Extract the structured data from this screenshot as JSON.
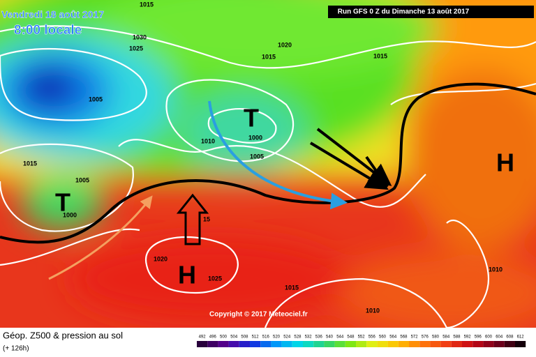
{
  "header": {
    "date": "Vendredi 18 août 2017",
    "time": "8:00 locale",
    "run": "Run GFS 0 Z du Dimanche 13 août 2017"
  },
  "pressure_labels": [
    "1015",
    "1030",
    "1025",
    "1020",
    "1015",
    "1015",
    "1005",
    "1000",
    "1005",
    "1010",
    "1015",
    "1005",
    "1000",
    "15",
    "1020",
    "1025",
    "1015",
    "1010",
    "1010"
  ],
  "systems": [
    "T",
    "T",
    "H",
    "H"
  ],
  "copyright": "Copyright © 2017 Meteociel.fr",
  "legend": {
    "title": "Géop. Z500 & pression au sol",
    "lead": "(+ 126h)",
    "scale": [
      492,
      496,
      500,
      504,
      508,
      512,
      516,
      520,
      524,
      528,
      532,
      536,
      540,
      544,
      548,
      552,
      556,
      560,
      564,
      568,
      572,
      576,
      580,
      584,
      588,
      592,
      596,
      600,
      604,
      608,
      612
    ]
  }
}
